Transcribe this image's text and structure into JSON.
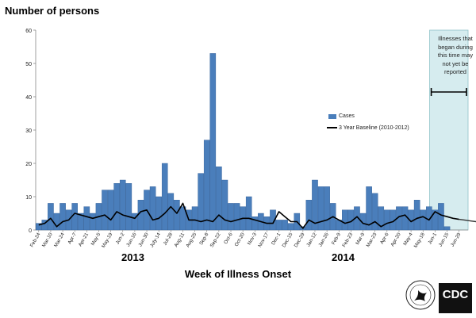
{
  "chart_data": {
    "type": "bar",
    "ylabel": "Number of persons",
    "xlabel": "Week of Illness Onset",
    "ylim": [
      0,
      60
    ],
    "yticks": [
      0,
      10,
      20,
      30,
      40,
      50,
      60
    ],
    "year_labels": [
      "2013",
      "2014"
    ],
    "tick_labels": [
      "Feb-24",
      "Mar-10",
      "Mar-24",
      "Apr-7",
      "Apr-21",
      "May-5",
      "May-19",
      "Jun-2",
      "Jun-16",
      "Jun-30",
      "July-14",
      "Jul-28",
      "Aug-11",
      "Aug-25",
      "Sep-8",
      "Sep-22",
      "Oct-6",
      "Oct-20",
      "Nov-3",
      "Nov-17",
      "Dec-1",
      "Dec-15",
      "Dec-29",
      "Jan-12",
      "Jan-26",
      "Feb-9",
      "Feb-23",
      "Mar-9",
      "Mar-23",
      "Apr-6",
      "Apr-20",
      "May-4",
      "May-18",
      "Jun-1",
      "Jun-15",
      "Jun-29"
    ],
    "annotation": "Illnesses that began during this time may not yet be reported",
    "legend_position": "right",
    "series": [
      {
        "name": "Cases",
        "color": "#4a7ebb",
        "values": [
          2,
          3,
          8,
          5,
          8,
          6,
          8,
          5,
          7,
          5,
          8,
          12,
          12,
          14,
          15,
          14,
          5,
          9,
          12,
          13,
          10,
          20,
          11,
          9,
          7,
          6,
          7,
          17,
          27,
          53,
          19,
          15,
          8,
          8,
          7,
          10,
          4,
          5,
          4,
          6,
          3,
          3,
          2,
          5,
          1,
          9,
          15,
          13,
          13,
          8,
          3,
          6,
          6,
          7,
          5,
          13,
          11,
          7,
          6,
          6,
          7,
          7,
          6,
          9,
          6,
          7,
          6,
          8,
          1
        ]
      },
      {
        "name": "3 Year Baseline (2010-2012)",
        "color": "#000000",
        "values": [
          1.5,
          2,
          3.5,
          1,
          2.5,
          3,
          5,
          4.5,
          4,
          3.5,
          4,
          4.5,
          3,
          5.5,
          4.5,
          4,
          3.5,
          5.5,
          6,
          3,
          3.5,
          5,
          7,
          5,
          8,
          3,
          3,
          2.5,
          3,
          2.5,
          4.5,
          3,
          2.5,
          3,
          3.5,
          3.5,
          3,
          2.5,
          2,
          2,
          5.5,
          4,
          2.5,
          2.5,
          0.5,
          3,
          2,
          2.5,
          3,
          4,
          3,
          2,
          2.5,
          4,
          2,
          1.5,
          2.5,
          1,
          2,
          2.5,
          4,
          4.5,
          2.5,
          3.5,
          4,
          3,
          5.5,
          4.5,
          4,
          3.5,
          3.2
        ]
      }
    ]
  },
  "logos": {
    "cdc": "CDC",
    "hhs": "hhs-seal-icon"
  }
}
